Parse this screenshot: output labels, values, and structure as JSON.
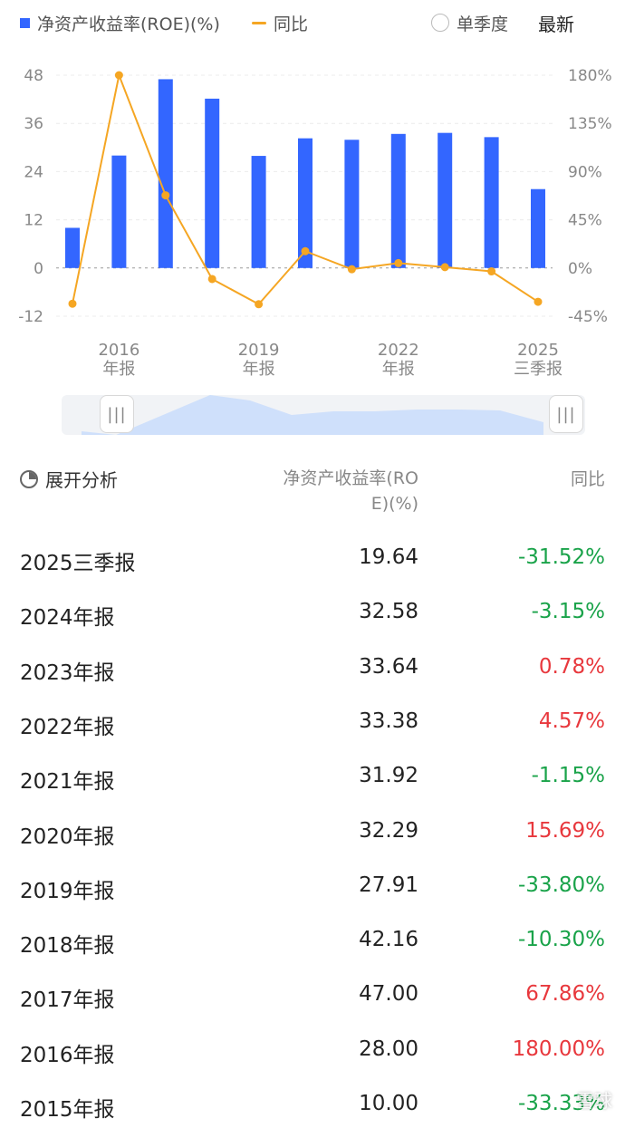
{
  "legend": {
    "roe_label": "净资产收益率(ROE)(%)",
    "yoy_label": "同比",
    "single_quarter": "单季度",
    "latest": "最新"
  },
  "colors": {
    "bar": "#3366ff",
    "line": "#f5a623",
    "positive": "#e8383d",
    "negative": "#1aa34a"
  },
  "chart_data": {
    "type": "bar",
    "categories": [
      "2015年报",
      "2016年报",
      "2017年报",
      "2018年报",
      "2019年报",
      "2020年报",
      "2021年报",
      "2022年报",
      "2023年报",
      "2024年报",
      "2025三季报"
    ],
    "series": [
      {
        "name": "净资产收益率(ROE)(%)",
        "type": "bar",
        "axis": "left",
        "values": [
          10.0,
          28.0,
          47.0,
          42.16,
          27.91,
          32.29,
          31.92,
          33.38,
          33.64,
          32.58,
          19.64
        ]
      },
      {
        "name": "同比",
        "type": "line",
        "axis": "right",
        "values": [
          -33.33,
          180.0,
          67.86,
          -10.3,
          -33.8,
          15.69,
          -1.15,
          4.57,
          0.78,
          -3.15,
          -31.52
        ]
      }
    ],
    "y_left_ticks": [
      "48",
      "36",
      "24",
      "12",
      "0",
      "-12"
    ],
    "y_right_ticks": [
      "180%",
      "135%",
      "90%",
      "45%",
      "0%",
      "-45%"
    ],
    "ylim_left": [
      -12,
      48
    ],
    "ylim_right": [
      -45,
      180
    ],
    "x_labels": [
      {
        "index": 1,
        "line1": "2016",
        "line2": "年报"
      },
      {
        "index": 4,
        "line1": "2019",
        "line2": "年报"
      },
      {
        "index": 7,
        "line1": "2022",
        "line2": "年报"
      },
      {
        "index": 10,
        "line1": "2025",
        "line2": "三季报"
      }
    ],
    "grid": true
  },
  "slider": {
    "handle_glyph": "|||"
  },
  "table": {
    "analyze_label": "展开分析",
    "col_roe_line1": "净资产收益率(RO",
    "col_roe_line2": "E)(%)",
    "col_yoy": "同比",
    "rows": [
      {
        "period": "2025三季报",
        "value": "19.64",
        "yoy": "-31.52%",
        "dir": "neg"
      },
      {
        "period": "2024年报",
        "value": "32.58",
        "yoy": "-3.15%",
        "dir": "neg"
      },
      {
        "period": "2023年报",
        "value": "33.64",
        "yoy": "0.78%",
        "dir": "pos"
      },
      {
        "period": "2022年报",
        "value": "33.38",
        "yoy": "4.57%",
        "dir": "pos"
      },
      {
        "period": "2021年报",
        "value": "31.92",
        "yoy": "-1.15%",
        "dir": "neg"
      },
      {
        "period": "2020年报",
        "value": "32.29",
        "yoy": "15.69%",
        "dir": "pos"
      },
      {
        "period": "2019年报",
        "value": "27.91",
        "yoy": "-33.80%",
        "dir": "neg"
      },
      {
        "period": "2018年报",
        "value": "42.16",
        "yoy": "-10.30%",
        "dir": "neg"
      },
      {
        "period": "2017年报",
        "value": "47.00",
        "yoy": "67.86%",
        "dir": "pos"
      },
      {
        "period": "2016年报",
        "value": "28.00",
        "yoy": "180.00%",
        "dir": "pos"
      },
      {
        "period": "2015年报",
        "value": "10.00",
        "yoy": "-33.33%",
        "dir": "neg"
      }
    ]
  },
  "watermark": "雪球"
}
